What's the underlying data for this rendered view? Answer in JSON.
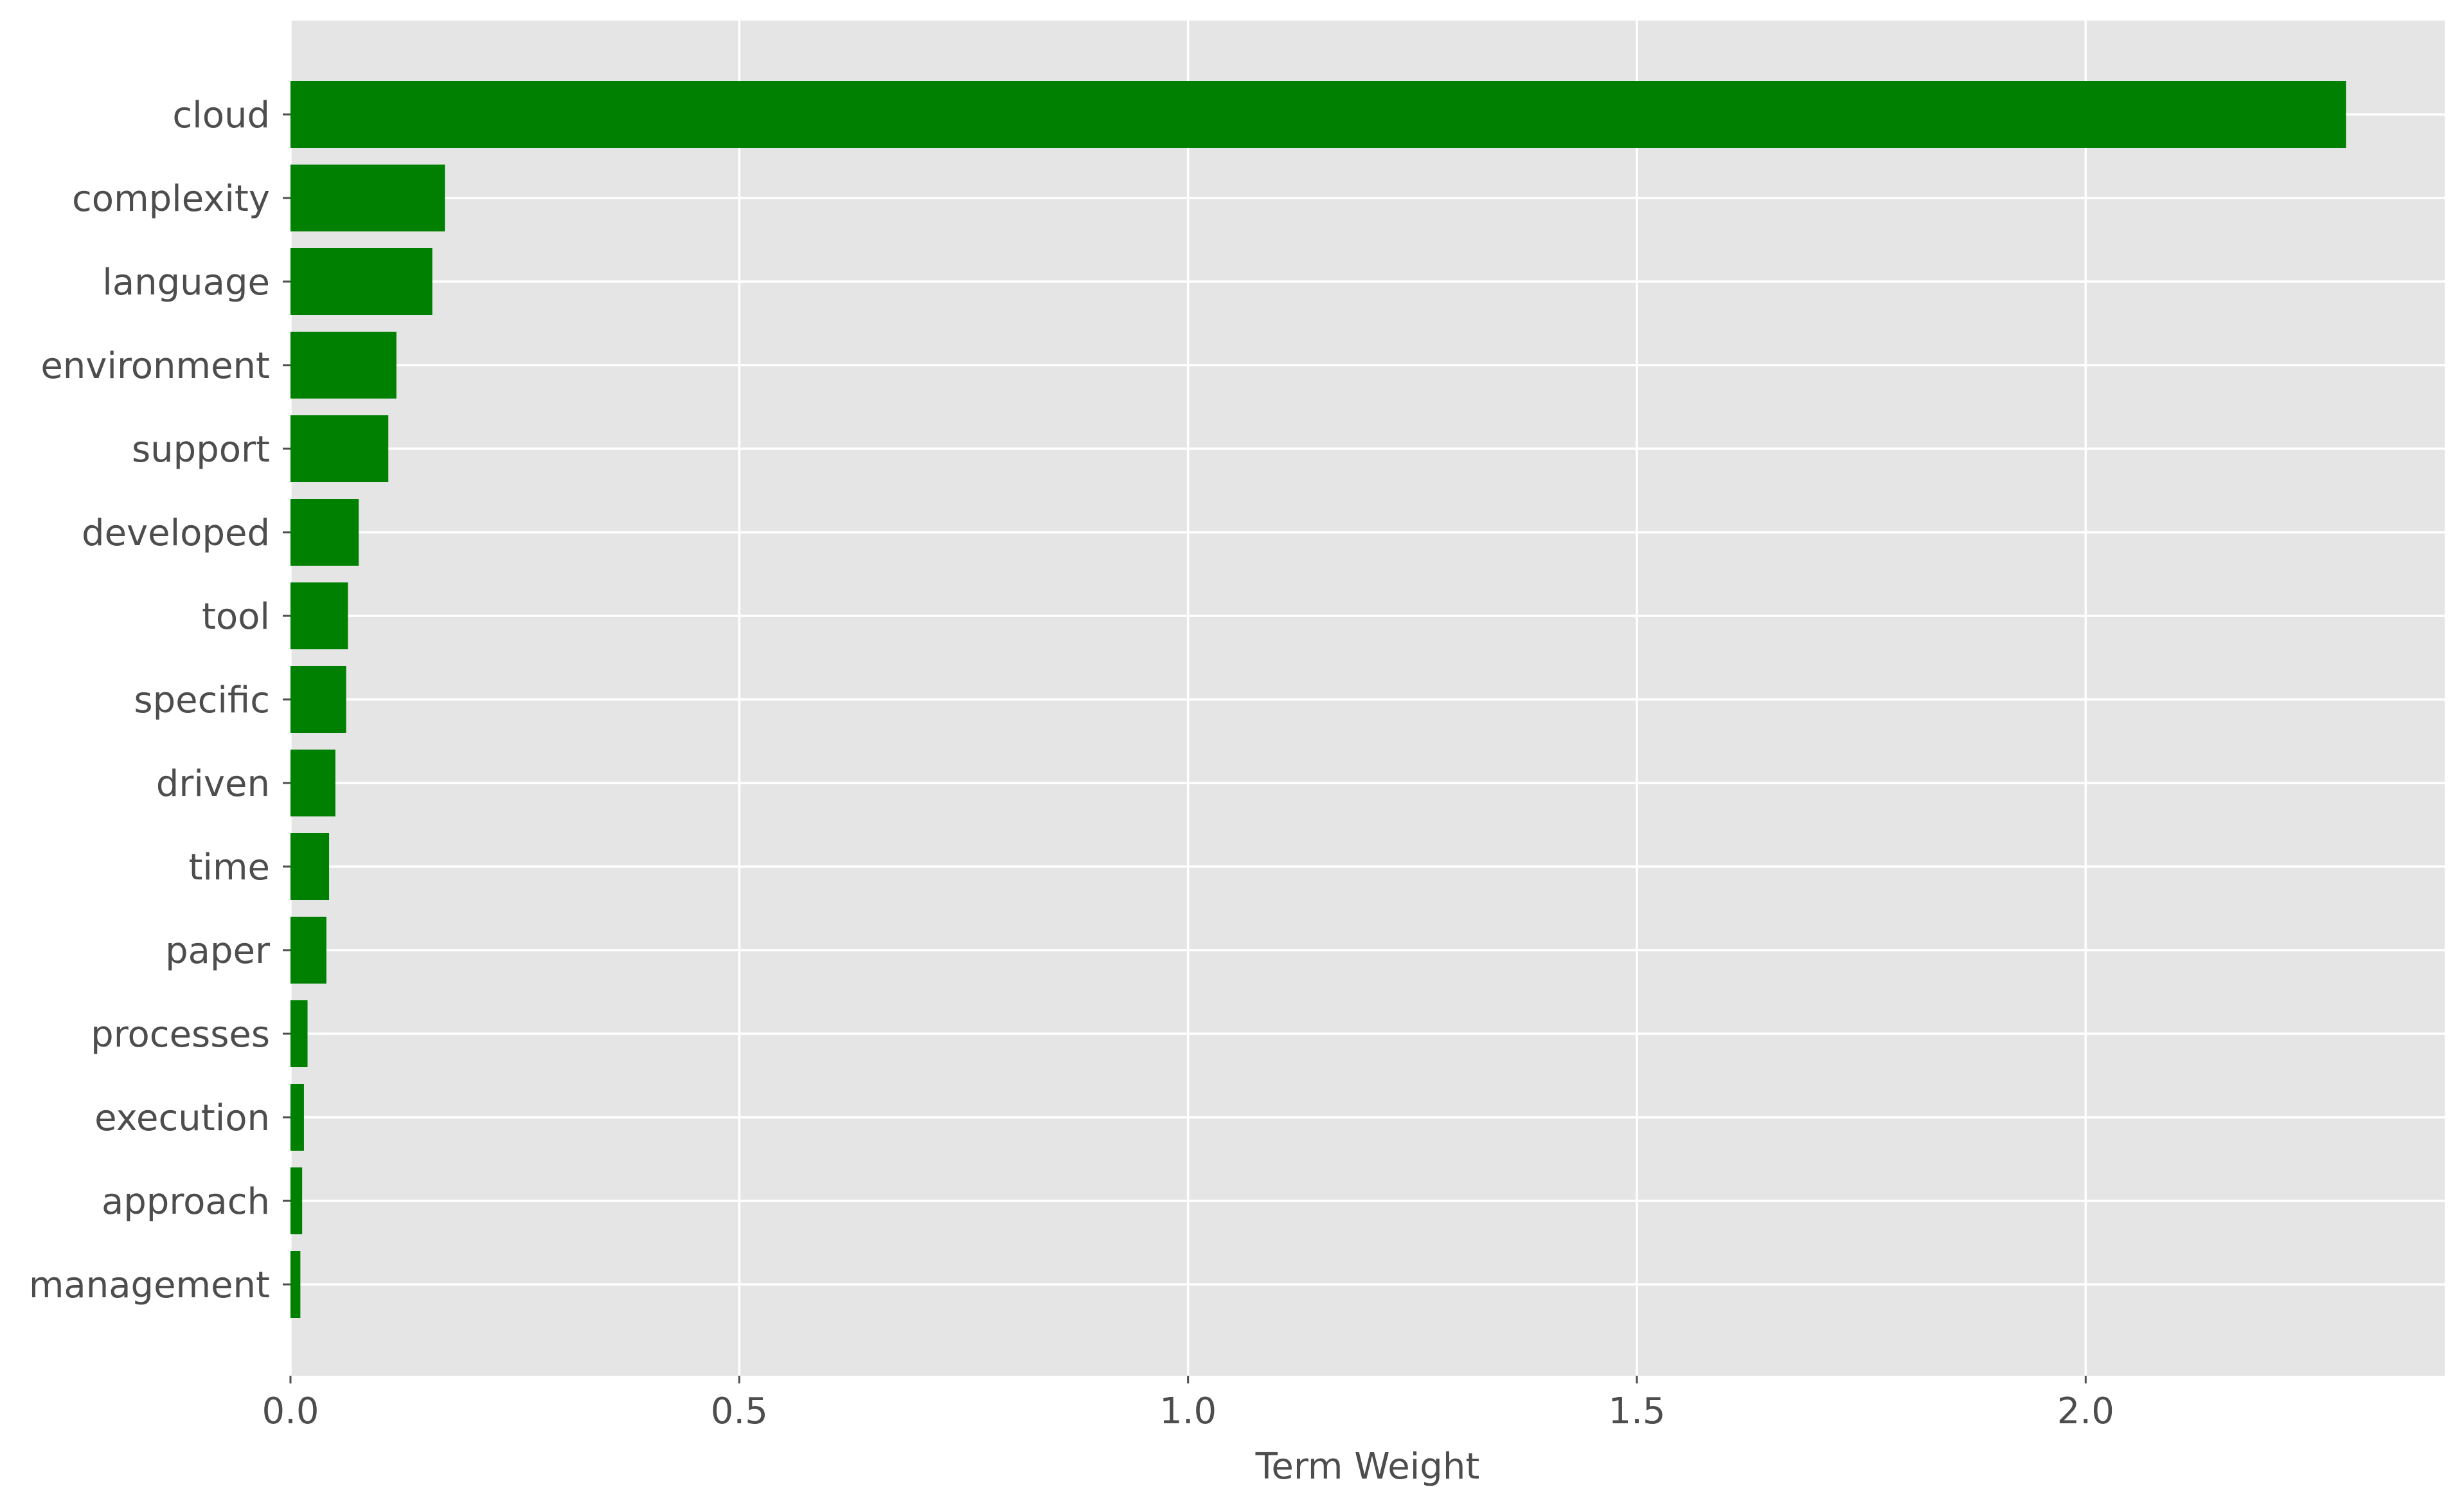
{
  "chart_data": {
    "type": "bar",
    "orientation": "horizontal",
    "title": "",
    "xlabel": "Term Weight",
    "ylabel": "",
    "categories": [
      "cloud",
      "complexity",
      "language",
      "environment",
      "support",
      "developed",
      "tool",
      "specific",
      "driven",
      "time",
      "paper",
      "processes",
      "execution",
      "approach",
      "management"
    ],
    "values": [
      2.29,
      0.172,
      0.158,
      0.118,
      0.109,
      0.076,
      0.064,
      0.062,
      0.05,
      0.043,
      0.04,
      0.019,
      0.015,
      0.013,
      0.011
    ],
    "xlim": [
      0,
      2.4
    ],
    "xticks": [
      0.0,
      0.5,
      1.0,
      1.5,
      2.0
    ],
    "xtick_labels": [
      "0.0",
      "0.5",
      "1.0",
      "1.5",
      "2.0"
    ],
    "grid": true,
    "bar_color": "#008000",
    "background_color": "#e5e5e5",
    "grid_color": "#ffffff"
  }
}
